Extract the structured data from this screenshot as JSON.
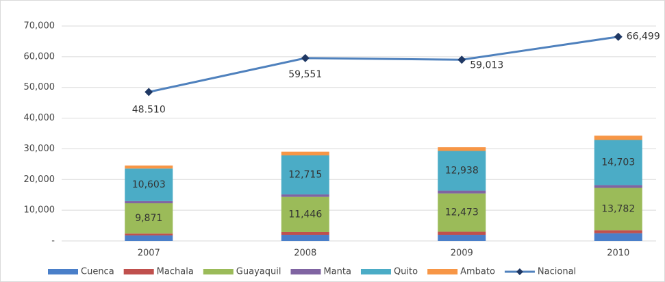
{
  "chart_data": {
    "type": "stacked_bar_line",
    "categories": [
      "2007",
      "2008",
      "2009",
      "2010"
    ],
    "series": [
      {
        "name": "Cuenca",
        "color": "#4a7fc9",
        "values": [
          1800,
          2000,
          2000,
          2500
        ]
      },
      {
        "name": "Machala",
        "color": "#c0504d",
        "values": [
          600,
          900,
          1000,
          1000
        ]
      },
      {
        "name": "Guayaquil",
        "color": "#9bbb59",
        "values": [
          9871,
          11446,
          12473,
          13782
        ],
        "value_labels": [
          "9,871",
          "11,446",
          "12,473",
          "13,782"
        ]
      },
      {
        "name": "Manta",
        "color": "#8064a2",
        "values": [
          700,
          800,
          900,
          900
        ]
      },
      {
        "name": "Quito",
        "color": "#4bacc6",
        "values": [
          10603,
          12715,
          12938,
          14703
        ],
        "value_labels": [
          "10,603",
          "12,715",
          "12,938",
          "14,703"
        ]
      },
      {
        "name": "Ambato",
        "color": "#f79646",
        "values": [
          1000,
          1200,
          1200,
          1400
        ]
      },
      {
        "name": "Nacional",
        "color": "#4f81bd",
        "marker_color": "#1f3864",
        "type": "line",
        "values": [
          48510,
          59551,
          59013,
          66499
        ],
        "value_labels": [
          "48.510",
          "59,551",
          "59,013",
          "66,499"
        ]
      }
    ],
    "ylim": [
      0,
      70000
    ],
    "yticks": [
      {
        "value": 0,
        "label": "-"
      },
      {
        "value": 10000,
        "label": "10,000"
      },
      {
        "value": 20000,
        "label": "20,000"
      },
      {
        "value": 30000,
        "label": "30,000"
      },
      {
        "value": 40000,
        "label": "40,000"
      },
      {
        "value": 50000,
        "label": "50,000"
      },
      {
        "value": 60000,
        "label": "60,000"
      },
      {
        "value": 70000,
        "label": "70,000"
      }
    ],
    "grid": true,
    "legend": "bottom"
  }
}
